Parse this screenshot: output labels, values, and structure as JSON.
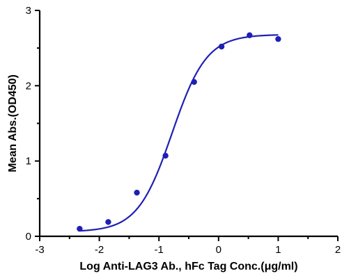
{
  "chart_data": {
    "type": "scatter",
    "title": "",
    "xlabel": "Log Anti-LAG3 Ab., hFc Tag Conc.(μg/ml)",
    "ylabel": "Mean Abs.(OD450)",
    "xlim": [
      -3,
      2
    ],
    "ylim": [
      0,
      3
    ],
    "x_ticks": [
      "-3",
      "-2",
      "-1",
      "0",
      "1",
      "2"
    ],
    "y_ticks": [
      "0",
      "1",
      "2",
      "3"
    ],
    "grid": false,
    "series": [
      {
        "color": "#1f1fb4",
        "points": [
          {
            "x": -2.33,
            "y": 0.1
          },
          {
            "x": -1.85,
            "y": 0.19
          },
          {
            "x": -1.37,
            "y": 0.58
          },
          {
            "x": -0.89,
            "y": 1.07
          },
          {
            "x": -0.41,
            "y": 2.05
          },
          {
            "x": 0.05,
            "y": 2.52
          },
          {
            "x": 0.52,
            "y": 2.67
          },
          {
            "x": 1.0,
            "y": 2.62
          }
        ],
        "fit": {
          "model": "4PL",
          "bottom": 0.06,
          "top": 2.68,
          "logEC50": -0.78,
          "hill": 1.5,
          "x_range": [
            -2.33,
            1.0
          ]
        }
      }
    ]
  }
}
